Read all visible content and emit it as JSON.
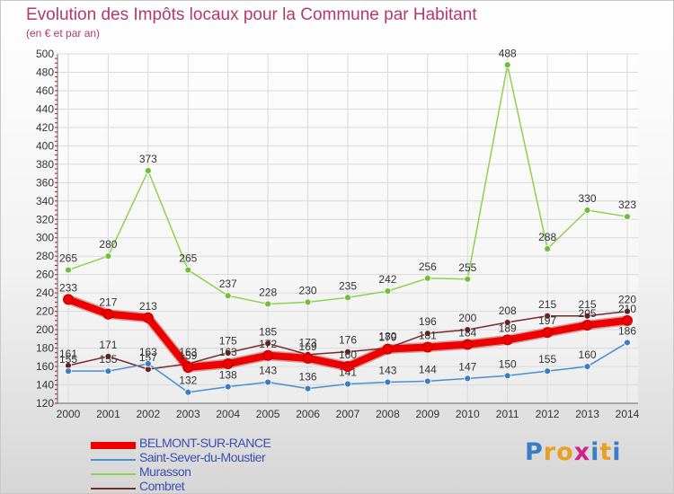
{
  "title": "Evolution des Impôts locaux pour la Commune par Habitant",
  "subtitle": "(en € et par an)",
  "logo": {
    "letters": [
      "P",
      "r",
      "o",
      "x",
      "i",
      "t",
      "i"
    ],
    "colors": [
      "#3b7dc4",
      "#e8a020",
      "#e8a020",
      "#d0208a",
      "#3b7dc4",
      "#e8a020",
      "#3b7dc4"
    ]
  },
  "chart_data": {
    "type": "line",
    "categories": [
      "2000",
      "2001",
      "2002",
      "2003",
      "2004",
      "2005",
      "2006",
      "2007",
      "2008",
      "2009",
      "2010",
      "2011",
      "2012",
      "2013",
      "2014"
    ],
    "ylim": [
      120,
      500
    ],
    "yticks": [
      120,
      140,
      160,
      180,
      200,
      220,
      240,
      260,
      280,
      300,
      320,
      340,
      360,
      380,
      400,
      420,
      440,
      460,
      480,
      500
    ],
    "grid": true,
    "series": [
      {
        "name": "Murasson",
        "color": "#8fd14f",
        "dot": "#6fbf3a",
        "values": [
          265,
          280,
          373,
          265,
          237,
          228,
          230,
          235,
          242,
          256,
          255,
          488,
          288,
          330,
          323
        ]
      },
      {
        "name": "Combret",
        "color": "#7a2a2a",
        "dot": "#6b1f1f",
        "values": [
          161,
          171,
          157,
          163,
          175,
          185,
          173,
          176,
          180,
          196,
          200,
          208,
          215,
          215,
          220
        ]
      },
      {
        "name": "Saint-Sever-du-Moustier",
        "color": "#4a8fd0",
        "dot": "#3b7dc4",
        "values": [
          155,
          155,
          163,
          132,
          138,
          143,
          136,
          141,
          143,
          144,
          147,
          150,
          155,
          160,
          186
        ]
      },
      {
        "name": "BELMONT-SUR-RANCE",
        "color": "#ee0000",
        "dot": "#ee0000",
        "values": [
          233,
          217,
          213,
          159,
          163,
          172,
          169,
          160,
          179,
          181,
          184,
          189,
          197,
          205,
          210
        ]
      }
    ]
  },
  "legend": [
    {
      "label": "BELMONT-SUR-RANCE",
      "color": "#ee0000",
      "thickness": 8
    },
    {
      "label": "Saint-Sever-du-Moustier",
      "color": "#4a8fd0",
      "thickness": 2
    },
    {
      "label": "Murasson",
      "color": "#8fd14f",
      "thickness": 2
    },
    {
      "label": "Combret",
      "color": "#7a2a2a",
      "thickness": 2
    }
  ]
}
